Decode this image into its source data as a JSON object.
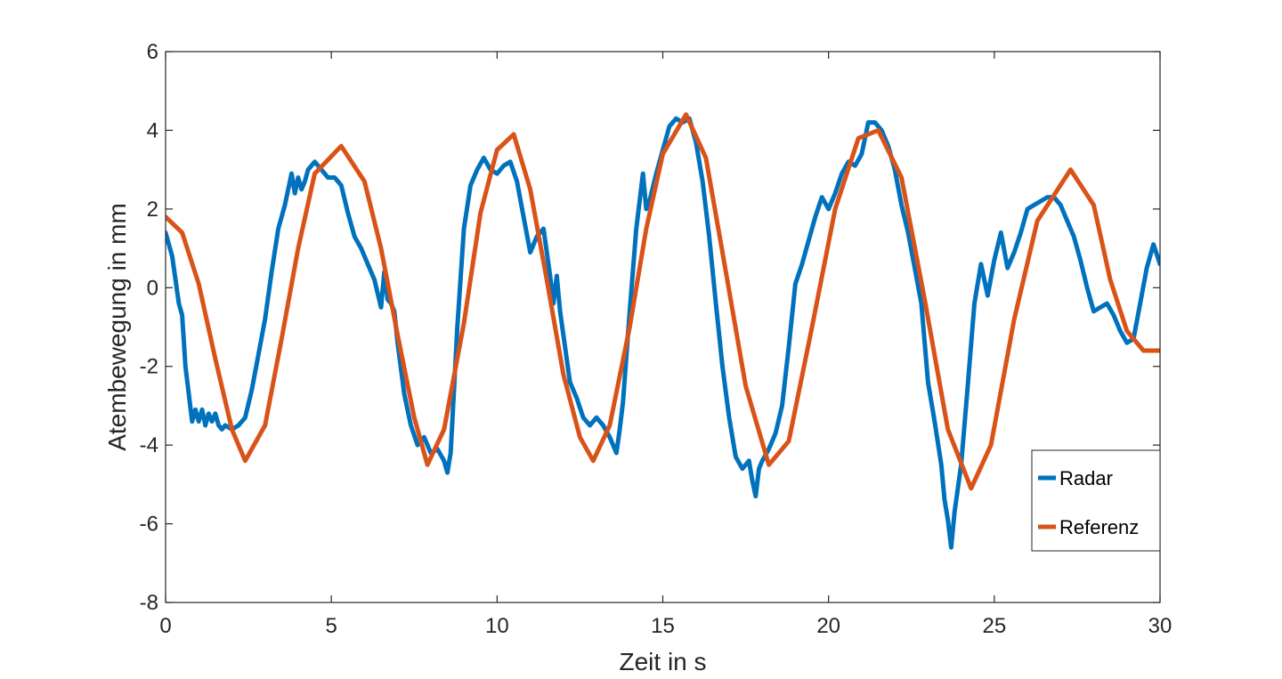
{
  "chart_data": {
    "type": "line",
    "xlabel": "Zeit in s",
    "ylabel": "Atembewegung in mm",
    "xlim": [
      0,
      30
    ],
    "ylim": [
      -8,
      6
    ],
    "xticks": [
      "0",
      "5",
      "10",
      "15",
      "20",
      "25",
      "30"
    ],
    "yticks": [
      "-8",
      "-6",
      "-4",
      "-2",
      "0",
      "2",
      "4",
      "6"
    ],
    "grid": false,
    "legend_position": "bottom-right",
    "series": [
      {
        "name": "Radar",
        "color": "#0072BD",
        "x": [
          0,
          0.2,
          0.4,
          0.5,
          0.6,
          0.8,
          0.9,
          1.0,
          1.1,
          1.2,
          1.3,
          1.4,
          1.5,
          1.6,
          1.7,
          1.8,
          2.0,
          2.2,
          2.4,
          2.6,
          2.8,
          3.0,
          3.2,
          3.4,
          3.6,
          3.8,
          3.9,
          4.0,
          4.1,
          4.2,
          4.3,
          4.5,
          4.7,
          4.9,
          5.1,
          5.3,
          5.5,
          5.7,
          5.9,
          6.1,
          6.3,
          6.5,
          6.6,
          6.7,
          6.8,
          6.9,
          7.0,
          7.2,
          7.4,
          7.6,
          7.8,
          8.0,
          8.2,
          8.4,
          8.5,
          8.6,
          8.8,
          9.0,
          9.2,
          9.4,
          9.6,
          9.8,
          10.0,
          10.2,
          10.4,
          10.6,
          10.8,
          11.0,
          11.2,
          11.4,
          11.6,
          11.7,
          11.8,
          11.9,
          12.0,
          12.2,
          12.4,
          12.6,
          12.8,
          13.0,
          13.2,
          13.4,
          13.6,
          13.7,
          13.8,
          14.0,
          14.2,
          14.4,
          14.5,
          14.6,
          14.8,
          15.0,
          15.2,
          15.4,
          15.6,
          15.8,
          16.0,
          16.2,
          16.4,
          16.6,
          16.8,
          17.0,
          17.2,
          17.4,
          17.6,
          17.7,
          17.8,
          17.9,
          18.0,
          18.2,
          18.4,
          18.6,
          18.8,
          19.0,
          19.2,
          19.4,
          19.6,
          19.8,
          20.0,
          20.2,
          20.4,
          20.6,
          20.8,
          21.0,
          21.2,
          21.4,
          21.6,
          21.8,
          22.0,
          22.2,
          22.4,
          22.6,
          22.8,
          23.0,
          23.2,
          23.4,
          23.5,
          23.6,
          23.7,
          23.8,
          24.0,
          24.2,
          24.4,
          24.6,
          24.8,
          25.0,
          25.2,
          25.4,
          25.6,
          25.8,
          26.0,
          26.2,
          26.4,
          26.6,
          26.8,
          27.0,
          27.2,
          27.4,
          27.6,
          27.8,
          28.0,
          28.2,
          28.4,
          28.6,
          28.8,
          29.0,
          29.2,
          29.4,
          29.6,
          29.8,
          30.0
        ],
        "y": [
          1.4,
          0.8,
          -0.4,
          -0.7,
          -2.0,
          -3.4,
          -3.1,
          -3.4,
          -3.1,
          -3.5,
          -3.2,
          -3.4,
          -3.2,
          -3.5,
          -3.6,
          -3.5,
          -3.6,
          -3.5,
          -3.3,
          -2.6,
          -1.7,
          -0.8,
          0.4,
          1.5,
          2.1,
          2.9,
          2.4,
          2.8,
          2.5,
          2.7,
          3.0,
          3.2,
          3.0,
          2.8,
          2.8,
          2.6,
          1.9,
          1.3,
          1.0,
          0.6,
          0.2,
          -0.5,
          0.4,
          -0.3,
          -0.4,
          -0.6,
          -1.4,
          -2.7,
          -3.5,
          -4.0,
          -3.8,
          -4.2,
          -4.1,
          -4.4,
          -4.7,
          -4.2,
          -1.0,
          1.5,
          2.6,
          3.0,
          3.3,
          3.0,
          2.9,
          3.1,
          3.2,
          2.7,
          1.8,
          0.9,
          1.3,
          1.5,
          0.3,
          -0.4,
          0.3,
          -0.6,
          -1.2,
          -2.4,
          -2.8,
          -3.3,
          -3.5,
          -3.3,
          -3.5,
          -3.8,
          -4.2,
          -3.6,
          -2.9,
          -0.6,
          1.5,
          2.9,
          2.0,
          2.2,
          2.9,
          3.5,
          4.1,
          4.3,
          4.2,
          4.3,
          3.7,
          2.7,
          1.3,
          -0.4,
          -2.0,
          -3.3,
          -4.3,
          -4.6,
          -4.4,
          -4.9,
          -5.3,
          -4.6,
          -4.4,
          -4.1,
          -3.7,
          -3.0,
          -1.5,
          0.1,
          0.6,
          1.2,
          1.8,
          2.3,
          2.0,
          2.4,
          2.9,
          3.2,
          3.1,
          3.4,
          4.2,
          4.2,
          4.0,
          3.6,
          3.0,
          2.1,
          1.4,
          0.5,
          -0.4,
          -2.4,
          -3.4,
          -4.5,
          -5.4,
          -5.9,
          -6.6,
          -5.7,
          -4.5,
          -2.5,
          -0.4,
          0.6,
          -0.2,
          0.7,
          1.4,
          0.5,
          0.9,
          1.4,
          2.0,
          2.1,
          2.2,
          2.3,
          2.3,
          2.1,
          1.7,
          1.3,
          0.7,
          0.0,
          -0.6,
          -0.5,
          -0.4,
          -0.7,
          -1.1,
          -1.4,
          -1.3,
          -0.4,
          0.5,
          1.1,
          0.6
        ]
      },
      {
        "name": "Referenz",
        "color": "#D95319",
        "x": [
          0,
          0.5,
          1.0,
          1.5,
          2.0,
          2.4,
          3.0,
          3.5,
          4.0,
          4.5,
          5.3,
          6.0,
          6.5,
          7.0,
          7.5,
          7.9,
          8.4,
          9.0,
          9.5,
          10.0,
          10.5,
          11.0,
          11.5,
          12.0,
          12.5,
          12.9,
          13.4,
          14.0,
          14.5,
          15.0,
          15.7,
          16.3,
          16.8,
          17.5,
          18.2,
          18.8,
          19.5,
          20.2,
          20.9,
          21.5,
          22.2,
          22.9,
          23.6,
          24.3,
          24.9,
          25.6,
          26.3,
          27.3,
          28.0,
          28.5,
          29.0,
          29.5,
          30.0
        ],
        "y": [
          1.8,
          1.4,
          0.1,
          -1.8,
          -3.6,
          -4.4,
          -3.5,
          -1.3,
          1.0,
          2.9,
          3.6,
          2.7,
          1.0,
          -1.2,
          -3.3,
          -4.5,
          -3.6,
          -0.9,
          1.9,
          3.5,
          3.9,
          2.5,
          0.2,
          -2.2,
          -3.8,
          -4.4,
          -3.5,
          -1.0,
          1.5,
          3.4,
          4.4,
          3.3,
          0.9,
          -2.5,
          -4.5,
          -3.9,
          -1.0,
          2.0,
          3.8,
          4.0,
          2.8,
          -0.3,
          -3.6,
          -5.1,
          -4.0,
          -0.8,
          1.7,
          3.0,
          2.1,
          0.2,
          -1.1,
          -1.6,
          -1.6
        ]
      }
    ]
  }
}
